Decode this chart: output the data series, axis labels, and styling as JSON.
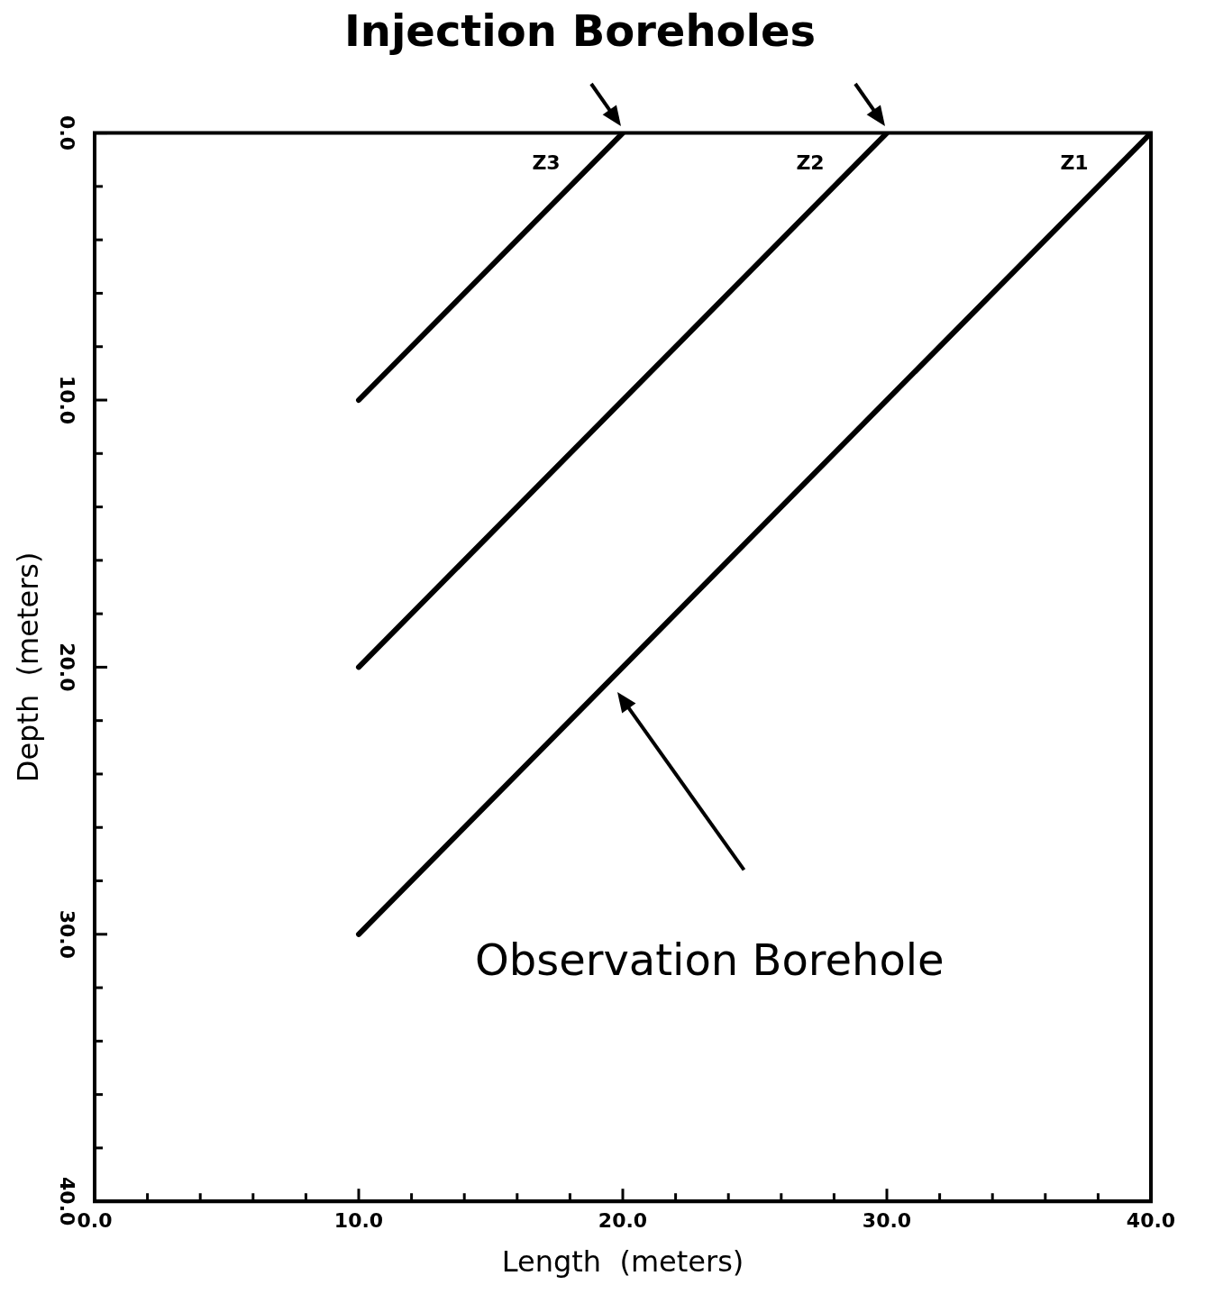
{
  "chart_data": {
    "type": "line",
    "title": "Injection Boreholes",
    "xlabel": "Length  (meters)",
    "ylabel": "Depth  (meters)",
    "xlim": [
      0,
      40
    ],
    "ylim": [
      40,
      0
    ],
    "xticks": [
      {
        "value": 0,
        "label": "0.0"
      },
      {
        "value": 2,
        "label": null
      },
      {
        "value": 4,
        "label": null
      },
      {
        "value": 6,
        "label": null
      },
      {
        "value": 8,
        "label": null
      },
      {
        "value": 10,
        "label": "10.0"
      },
      {
        "value": 12,
        "label": null
      },
      {
        "value": 14,
        "label": null
      },
      {
        "value": 16,
        "label": null
      },
      {
        "value": 18,
        "label": null
      },
      {
        "value": 20,
        "label": "20.0"
      },
      {
        "value": 22,
        "label": null
      },
      {
        "value": 24,
        "label": null
      },
      {
        "value": 26,
        "label": null
      },
      {
        "value": 28,
        "label": null
      },
      {
        "value": 30,
        "label": "30.0"
      },
      {
        "value": 32,
        "label": null
      },
      {
        "value": 34,
        "label": null
      },
      {
        "value": 36,
        "label": null
      },
      {
        "value": 38,
        "label": null
      },
      {
        "value": 40,
        "label": "40.0"
      }
    ],
    "yticks": [
      {
        "value": 0,
        "label": "0.0"
      },
      {
        "value": 2,
        "label": null
      },
      {
        "value": 4,
        "label": null
      },
      {
        "value": 6,
        "label": null
      },
      {
        "value": 8,
        "label": null
      },
      {
        "value": 10,
        "label": "10.0"
      },
      {
        "value": 12,
        "label": null
      },
      {
        "value": 14,
        "label": null
      },
      {
        "value": 16,
        "label": null
      },
      {
        "value": 18,
        "label": null
      },
      {
        "value": 20,
        "label": "20.0"
      },
      {
        "value": 22,
        "label": null
      },
      {
        "value": 24,
        "label": null
      },
      {
        "value": 26,
        "label": null
      },
      {
        "value": 28,
        "label": null
      },
      {
        "value": 30,
        "label": "30.0"
      },
      {
        "value": 32,
        "label": null
      },
      {
        "value": 34,
        "label": null
      },
      {
        "value": 36,
        "label": null
      },
      {
        "value": 38,
        "label": null
      },
      {
        "value": 40,
        "label": "40.0"
      }
    ],
    "series": [
      {
        "name": "Z1",
        "color": "#000000",
        "x": [
          40,
          10
        ],
        "values": [
          0,
          30
        ]
      },
      {
        "name": "Z2",
        "color": "#000000",
        "x": [
          30,
          10
        ],
        "values": [
          0,
          20
        ]
      },
      {
        "name": "Z3",
        "color": "#000000",
        "x": [
          20,
          10
        ],
        "values": [
          0,
          10
        ]
      }
    ],
    "annotations": [
      "Observation Borehole"
    ],
    "grid": false,
    "legend": false,
    "marker": "none",
    "line_style": "solid"
  }
}
